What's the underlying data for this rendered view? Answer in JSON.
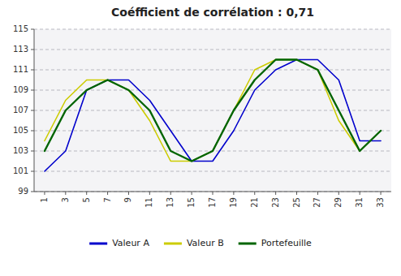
{
  "chart_data": {
    "type": "line",
    "title": "Coéfficient de corrélation : 0,71",
    "x": [
      1,
      3,
      5,
      7,
      9,
      11,
      13,
      15,
      17,
      19,
      21,
      23,
      25,
      27,
      29,
      31,
      33
    ],
    "series": [
      {
        "name": "Valeur A",
        "color": "#0000CC",
        "values": [
          101,
          103,
          109,
          110,
          110,
          108,
          105,
          102,
          102,
          105,
          109,
          111,
          112,
          112,
          110,
          104,
          104
        ]
      },
      {
        "name": "Valeur B",
        "color": "#CCCC00",
        "values": [
          104,
          108,
          110,
          110,
          109,
          106,
          102,
          102,
          103,
          107,
          111,
          112,
          112,
          111,
          106,
          103,
          105
        ]
      },
      {
        "name": "Portefeuille",
        "color": "#006400",
        "values": [
          103,
          107,
          109,
          110,
          109,
          107,
          103,
          102,
          103,
          107,
          110,
          112,
          112,
          111,
          107,
          103,
          105
        ]
      }
    ],
    "xlim": [
      0,
      34
    ],
    "xticks": [
      1,
      3,
      5,
      7,
      9,
      11,
      13,
      15,
      17,
      19,
      21,
      23,
      25,
      27,
      29,
      31,
      33
    ],
    "ylim": [
      99,
      115
    ],
    "yticks": [
      99,
      101,
      103,
      105,
      107,
      109,
      111,
      113,
      115
    ],
    "grid": true,
    "legend": "bottom"
  }
}
